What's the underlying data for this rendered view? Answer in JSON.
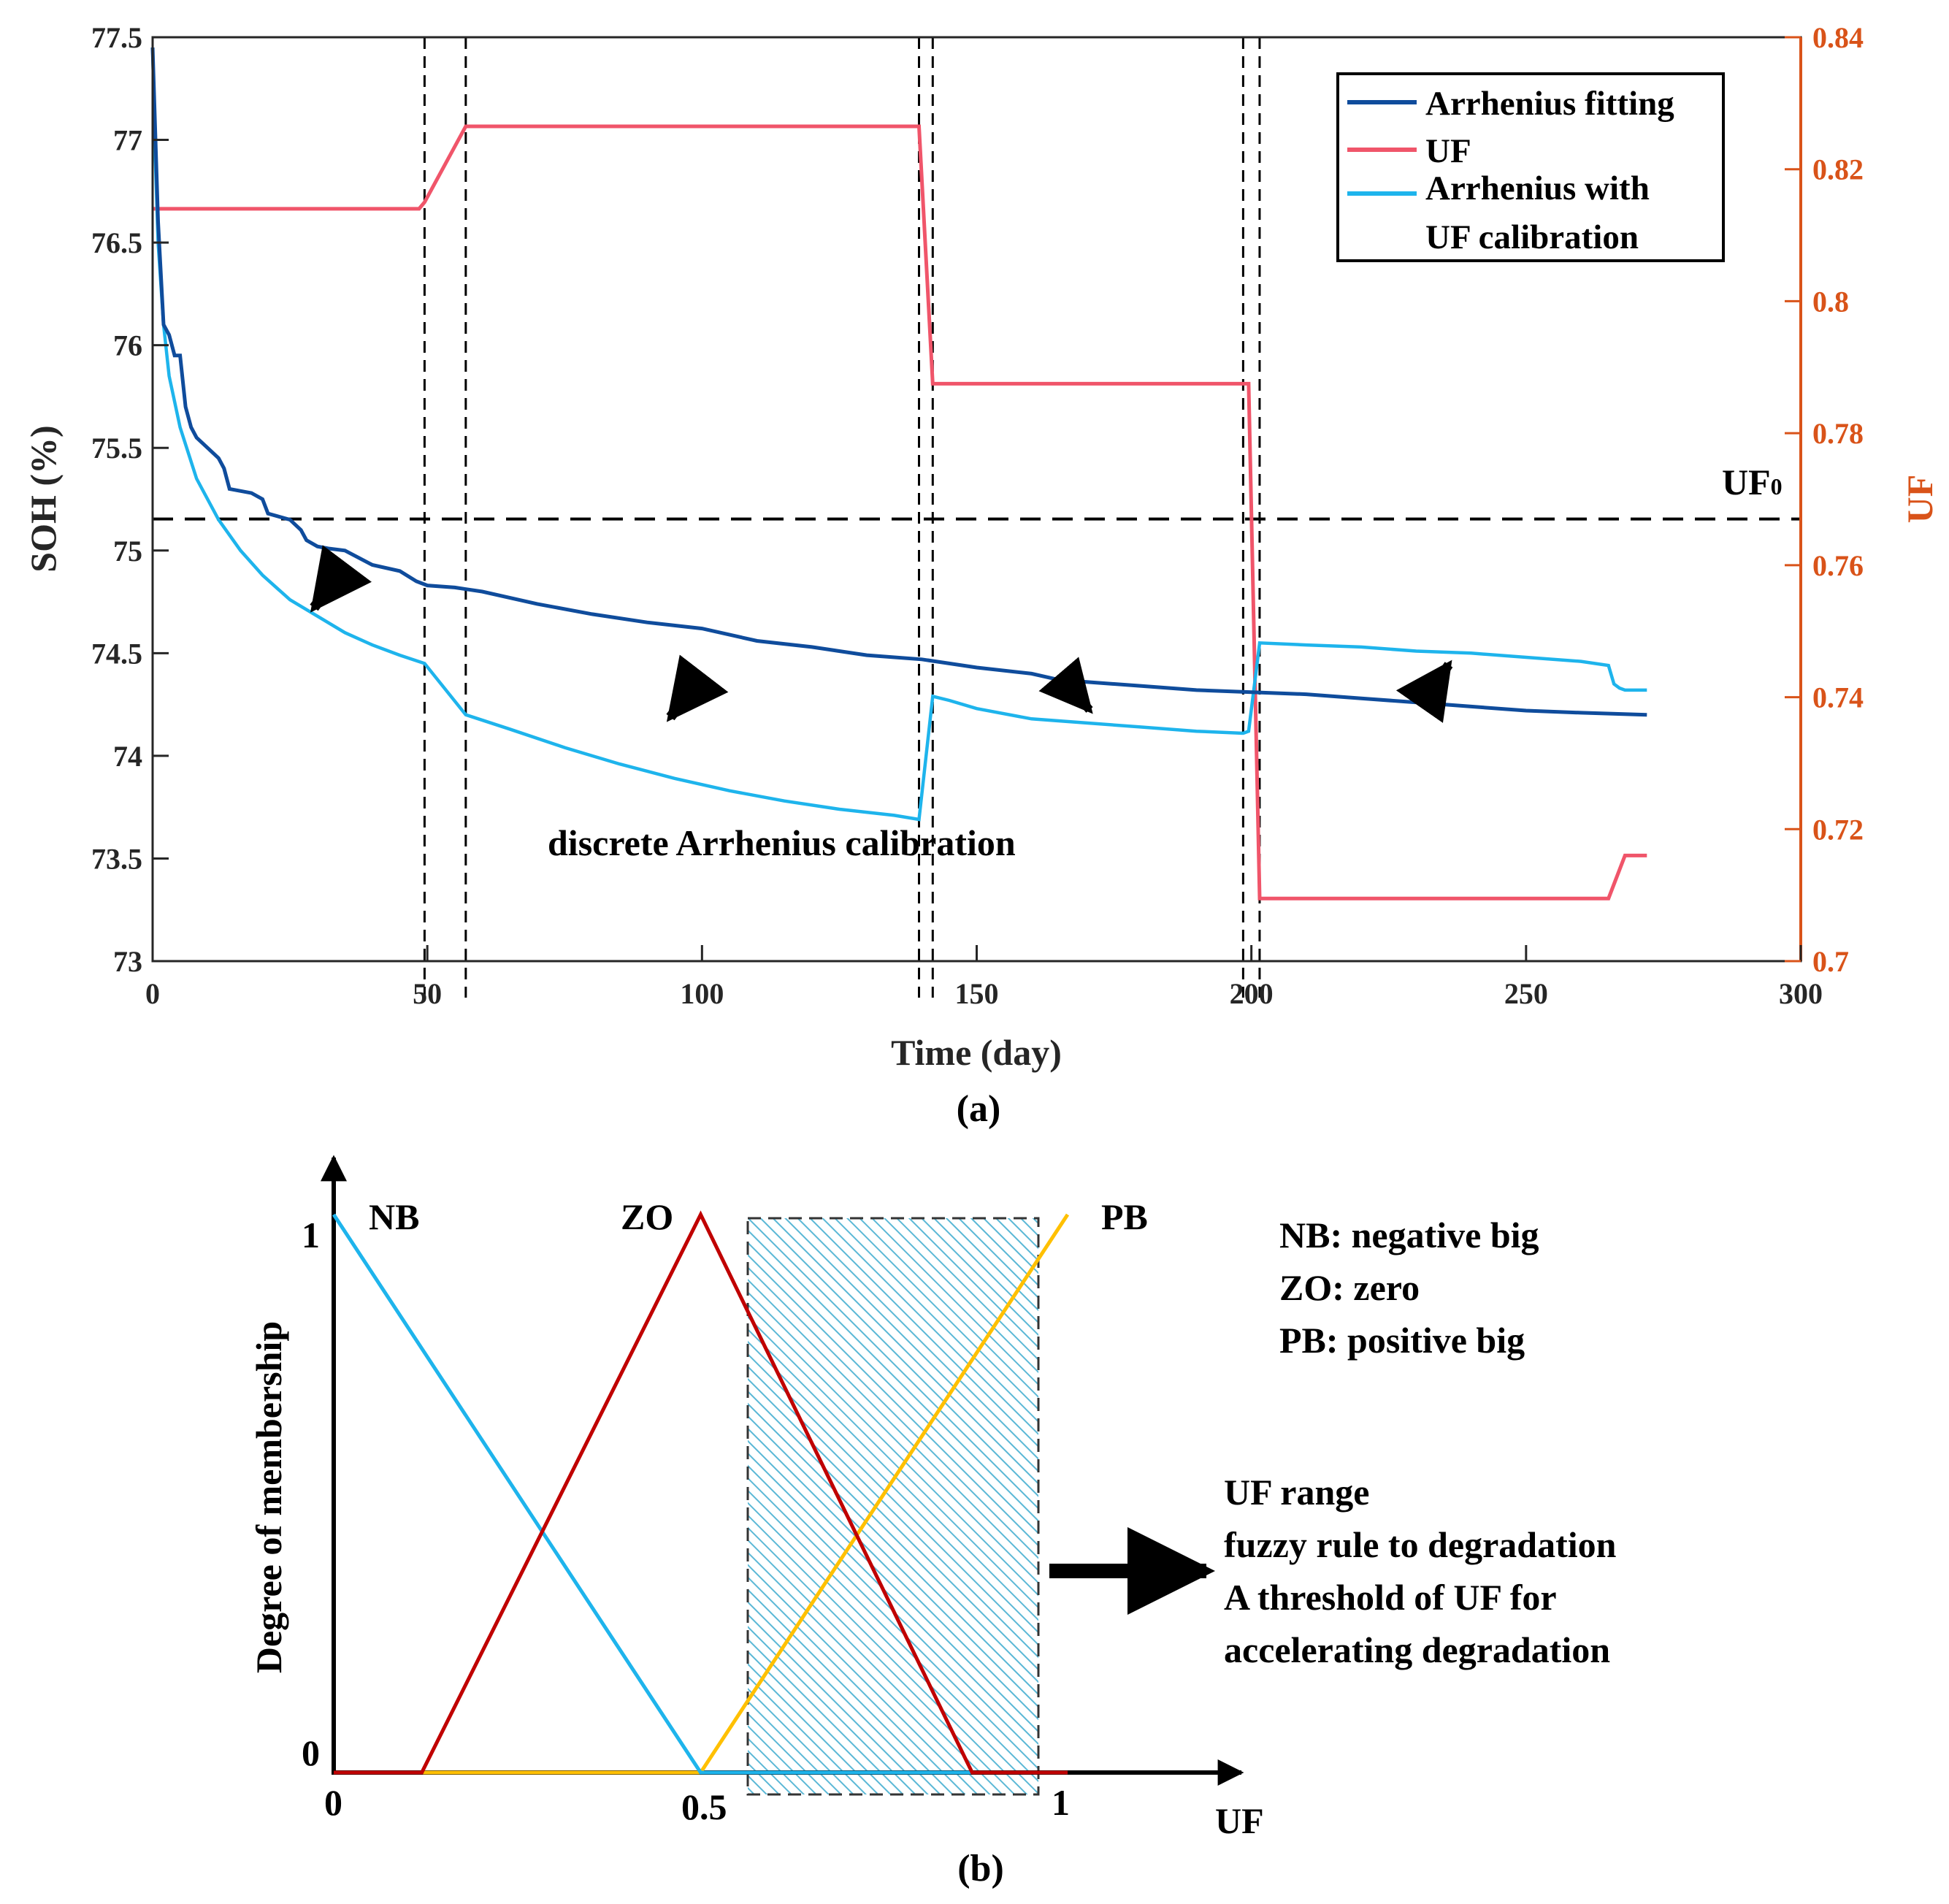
{
  "chart_data": [
    {
      "type": "line",
      "caption": "(a)",
      "xlabel": "Time (day)",
      "ylabel": "SOH (%)",
      "ylabel_right": "UF",
      "xlim": [
        0,
        300
      ],
      "ylim": [
        73,
        77.5
      ],
      "ylim_right": [
        0.7,
        0.84
      ],
      "x_ticks": [
        "0",
        "50",
        "100",
        "150",
        "200",
        "250",
        "300"
      ],
      "y_ticks": [
        "73",
        "73.5",
        "74",
        "74.5",
        "75",
        "75.5",
        "76",
        "76.5",
        "77",
        "77.5"
      ],
      "y_ticks_right": [
        "0.7",
        "0.72",
        "0.74",
        "0.76",
        "0.78",
        "0.8",
        "0.82",
        "0.84"
      ],
      "legend": [
        "Arrhenius fitting",
        "UF",
        "Arrhenius with",
        "UF calibration"
      ],
      "legend_position": "top-right",
      "colors": {
        "arrhenius": "#0F4C9C",
        "uf": "#F0556A",
        "calibrated": "#1EB4EC",
        "right_axis": "#D95319"
      },
      "uf0_label": "UF",
      "uf0_sub": "0",
      "uf0_value": 0.767,
      "annotation": "discrete Arrhenius calibration",
      "calibration_days": [
        49.5,
        57,
        139.5,
        142,
        198.5,
        201.5
      ],
      "series": [
        {
          "name": "Arrhenius fitting",
          "axis": "left",
          "x": [
            0,
            1,
            2,
            3,
            4,
            5,
            6,
            7,
            8,
            10,
            12,
            13,
            14,
            18,
            20,
            21,
            25,
            27,
            28,
            30,
            32,
            35,
            40,
            45,
            48,
            50,
            55,
            60,
            70,
            80,
            90,
            100,
            110,
            120,
            130,
            140,
            150,
            160,
            165,
            170,
            180,
            190,
            200,
            210,
            220,
            230,
            240,
            250,
            260,
            272
          ],
          "y": [
            77.45,
            76.6,
            76.1,
            76.05,
            75.95,
            75.95,
            75.7,
            75.6,
            75.55,
            75.5,
            75.45,
            75.4,
            75.3,
            75.28,
            75.25,
            75.18,
            75.15,
            75.1,
            75.05,
            75.02,
            75.01,
            75.0,
            74.93,
            74.9,
            74.85,
            74.83,
            74.82,
            74.8,
            74.74,
            74.69,
            74.65,
            74.62,
            74.56,
            74.53,
            74.49,
            74.47,
            74.43,
            74.4,
            74.37,
            74.36,
            74.34,
            74.32,
            74.31,
            74.3,
            74.28,
            74.26,
            74.24,
            74.22,
            74.21,
            74.2
          ]
        },
        {
          "name": "UF",
          "axis": "right",
          "x": [
            0,
            48.5,
            49.5,
            57,
            139.5,
            142,
            198.5,
            199.5,
            201.5,
            265,
            268,
            272
          ],
          "y": [
            0.814,
            0.814,
            0.815,
            0.8265,
            0.8265,
            0.7875,
            0.7875,
            0.7875,
            0.7095,
            0.7095,
            0.716,
            0.716
          ]
        },
        {
          "name": "Arrhenius with UF calibration",
          "axis": "left",
          "x": [
            0,
            0.5,
            1,
            2,
            3,
            5,
            8,
            12,
            16,
            20,
            25,
            30,
            35,
            40,
            45,
            49.5,
            57,
            65,
            75,
            85,
            95,
            105,
            115,
            125,
            135,
            139.5,
            142,
            145,
            150,
            160,
            170,
            180,
            190,
            198.5,
            199.5,
            201.5,
            210,
            220,
            230,
            240,
            250,
            260,
            265,
            266,
            267,
            268,
            270,
            272
          ],
          "y": [
            77.45,
            76.9,
            76.5,
            76.1,
            75.85,
            75.6,
            75.35,
            75.15,
            75.0,
            74.88,
            74.76,
            74.68,
            74.6,
            74.54,
            74.49,
            74.45,
            74.2,
            74.13,
            74.04,
            73.96,
            73.89,
            73.83,
            73.78,
            73.74,
            73.71,
            73.69,
            74.29,
            74.27,
            74.23,
            74.18,
            74.16,
            74.14,
            74.12,
            74.11,
            74.12,
            74.55,
            74.54,
            74.53,
            74.51,
            74.5,
            74.48,
            74.46,
            74.44,
            74.35,
            74.33,
            74.32,
            74.32,
            74.32
          ]
        }
      ]
    },
    {
      "type": "line",
      "caption": "(b)",
      "xlabel": "UF",
      "ylabel": "Degree of membership",
      "x_ticks": [
        "0",
        "0.5",
        "1"
      ],
      "y_ticks": [
        "0",
        "1"
      ],
      "labels": {
        "nb": "NB",
        "zo": "ZO",
        "pb": "PB"
      },
      "legend_lines": [
        "NB: negative big",
        "ZO: zero",
        "PB: positive big"
      ],
      "shaded_range": [
        0.56,
        0.95
      ],
      "box_lines": [
        "UF range",
        "fuzzy rule to degradation",
        "A threshold of UF for",
        "accelerating degradation"
      ],
      "colors": {
        "nb": "#1EB4EC",
        "zo": "#C00000",
        "pb": "#FFC000",
        "hatch": "#5BB8D6"
      },
      "series": [
        {
          "name": "NB",
          "x": [
            0,
            0.5,
            1.0
          ],
          "y": [
            1,
            0,
            0
          ]
        },
        {
          "name": "ZO",
          "x": [
            0,
            0.12,
            0.5,
            0.87,
            1.0
          ],
          "y": [
            0,
            0,
            1,
            0,
            0
          ]
        },
        {
          "name": "PB",
          "x": [
            0,
            0.5,
            1.0
          ],
          "y": [
            0,
            0,
            1
          ]
        }
      ]
    }
  ]
}
